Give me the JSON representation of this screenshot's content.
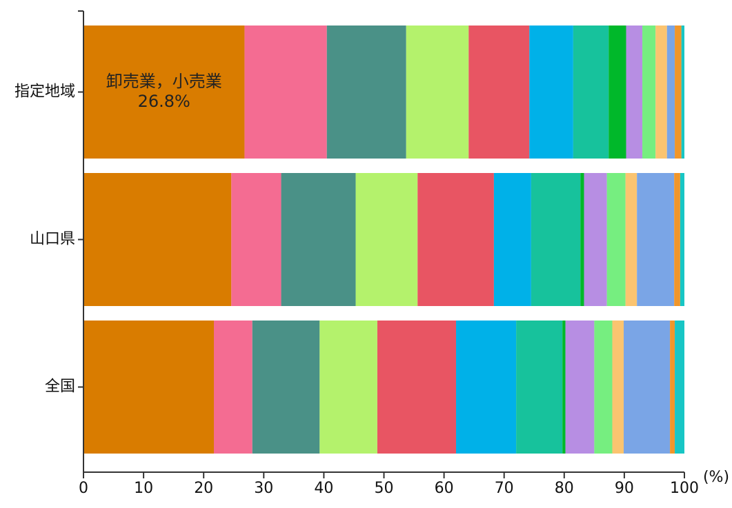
{
  "chart_data": {
    "type": "bar",
    "orientation": "horizontal",
    "stacked": true,
    "x_unit_label": "(%)",
    "xlim": [
      0,
      100
    ],
    "x_ticks": [
      "0",
      "10",
      "20",
      "30",
      "40",
      "50",
      "60",
      "70",
      "80",
      "90",
      "100"
    ],
    "categories": [
      "指定地域",
      "山口県",
      "全国"
    ],
    "segment_colors": [
      "#D97C00",
      "#F46C92",
      "#4A9187",
      "#B4F26C",
      "#E85563",
      "#00B1E8",
      "#17C29C",
      "#00B82A",
      "#B78EE3",
      "#76EE80",
      "#FBC470",
      "#7AA5E6",
      "#F0962A",
      "#17C6C5"
    ],
    "series": [
      {
        "values": [
          26.8,
          24.6,
          21.7
        ]
      },
      {
        "values": [
          13.7,
          8.3,
          6.4
        ]
      },
      {
        "values": [
          13.2,
          12.4,
          11.2
        ]
      },
      {
        "values": [
          10.4,
          10.3,
          9.6
        ]
      },
      {
        "values": [
          10.1,
          12.7,
          13.1
        ]
      },
      {
        "values": [
          7.3,
          6.2,
          10.0
        ]
      },
      {
        "values": [
          5.9,
          8.2,
          7.7
        ]
      },
      {
        "values": [
          2.9,
          0.6,
          0.5
        ]
      },
      {
        "values": [
          2.7,
          3.8,
          4.8
        ]
      },
      {
        "values": [
          2.2,
          3.1,
          3.0
        ]
      },
      {
        "values": [
          1.9,
          1.9,
          1.9
        ]
      },
      {
        "values": [
          1.3,
          6.2,
          7.7
        ]
      },
      {
        "values": [
          1.1,
          1.0,
          0.8
        ]
      },
      {
        "values": [
          0.5,
          0.7,
          1.6
        ]
      }
    ],
    "annotation": {
      "category": "指定地域",
      "series_index": 0,
      "lines": [
        "卸売業，小売業",
        "26.8%"
      ]
    },
    "grid": false,
    "legend": "none"
  }
}
